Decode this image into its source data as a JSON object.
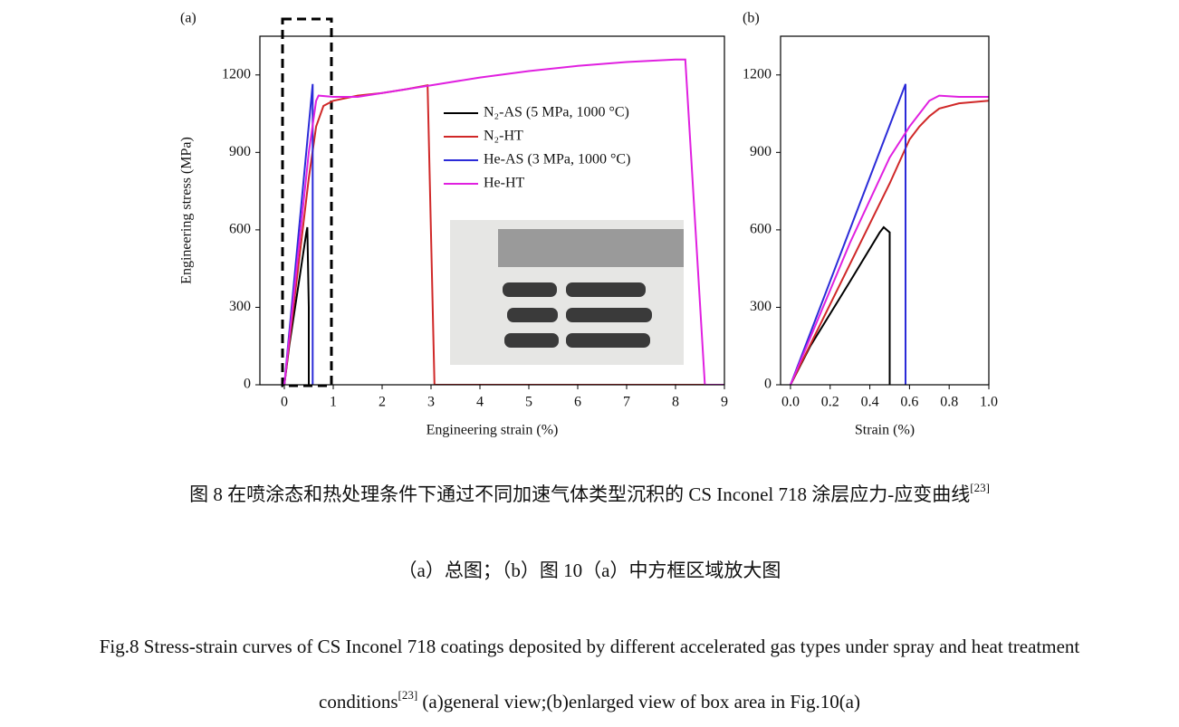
{
  "chart_data": [
    {
      "type": "line",
      "panel_label": "(a)",
      "x_label": "Engineering strain (%)",
      "y_label": "Engineering stress (MPa)",
      "xlim": [
        -0.5,
        9
      ],
      "ylim": [
        0,
        1350
      ],
      "xticks": [
        0,
        1,
        2,
        3,
        4,
        5,
        6,
        7,
        8,
        9
      ],
      "yticks": [
        0,
        300,
        600,
        900,
        1200
      ],
      "legend": true,
      "series": [
        {
          "name": "N₂-AS (5 MPa, 1000 °C)",
          "color": "#000000",
          "x": [
            0,
            0.1,
            0.3,
            0.45,
            0.47,
            0.5,
            0.5
          ],
          "values": [
            0,
            150,
            400,
            590,
            610,
            300,
            0
          ]
        },
        {
          "name": "N₂-HT",
          "color": "#d02828",
          "x": [
            0,
            0.5,
            0.65,
            0.8,
            1.0,
            1.5,
            2.0,
            2.5,
            2.93,
            3.07,
            9
          ],
          "values": [
            0,
            800,
            1000,
            1080,
            1100,
            1120,
            1130,
            1145,
            1160,
            0,
            0
          ]
        },
        {
          "name": "He-AS (3 MPa, 1000 °C)",
          "color": "#2b2bd8",
          "x": [
            0,
            0.58,
            0.58
          ],
          "values": [
            0,
            1165,
            0
          ]
        },
        {
          "name": "He-HT",
          "color": "#e020e0",
          "x": [
            0,
            0.5,
            0.65,
            0.7,
            1.0,
            1.5,
            2,
            3,
            4,
            5,
            6,
            7,
            8,
            8.2,
            8.6,
            9
          ],
          "values": [
            0,
            900,
            1100,
            1120,
            1115,
            1115,
            1130,
            1160,
            1190,
            1215,
            1235,
            1250,
            1260,
            1260,
            0,
            0
          ]
        }
      ]
    },
    {
      "type": "line",
      "panel_label": "(b)",
      "x_label": "Strain (%)",
      "xlim": [
        -0.05,
        1.0
      ],
      "ylim": [
        0,
        1350
      ],
      "xticks": [
        {
          "value": 0,
          "label": "0.0"
        },
        0.2,
        0.4,
        0.6,
        0.8,
        {
          "value": 1,
          "label": "1.0"
        }
      ],
      "yticks": [
        0,
        300,
        600,
        900,
        1200
      ],
      "legend": false,
      "series": [
        {
          "name": "N₂-AS (5 MPa, 1000 °C)",
          "color": "#000000",
          "x": [
            0,
            0.1,
            0.3,
            0.45,
            0.47,
            0.5,
            0.5
          ],
          "values": [
            0,
            150,
            400,
            590,
            610,
            590,
            0
          ]
        },
        {
          "name": "N₂-HT",
          "color": "#d02828",
          "x": [
            0,
            0.5,
            0.6,
            0.65,
            0.7,
            0.75,
            0.85,
            1.0
          ],
          "values": [
            0,
            780,
            950,
            1000,
            1040,
            1070,
            1090,
            1100
          ]
        },
        {
          "name": "He-AS (3 MPa, 1000 °C)",
          "color": "#2b2bd8",
          "x": [
            0,
            0.58,
            0.58
          ],
          "values": [
            0,
            1165,
            0
          ]
        },
        {
          "name": "He-HT",
          "color": "#e020e0",
          "x": [
            0,
            0.3,
            0.5,
            0.6,
            0.7,
            0.75,
            0.85,
            1.0
          ],
          "values": [
            0,
            550,
            880,
            1000,
            1100,
            1120,
            1115,
            1115
          ]
        }
      ]
    }
  ],
  "captions": [
    {
      "text": "图 8 在喷涂态和热处理条件下通过不同加速气体类型沉积的 CS Inconel 718 涂层应力-应变曲线",
      "ref": "[23]"
    },
    {
      "text": "（a）总图；（b）图 10（a）中方框区域放大图"
    },
    {
      "text": "Fig.8 Stress-strain curves of CS Inconel 718 coatings deposited by different accelerated gas types under spray and heat treatment"
    },
    {
      "text": "conditions",
      "ref": "[23]",
      "tail": " (a)general view;(b)enlarged view of box area in Fig.10(a)"
    }
  ]
}
